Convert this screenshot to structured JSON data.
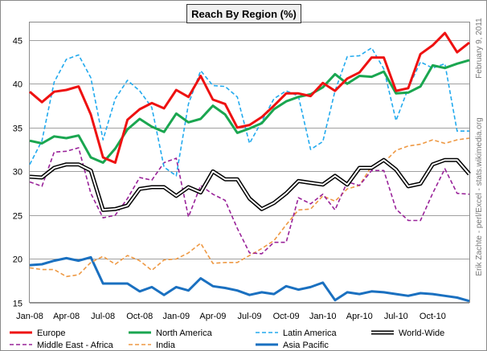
{
  "chart_data": {
    "type": "line",
    "title": "Reach By Region (%)",
    "credits": {
      "date": "February 9, 2011",
      "author": "Erik Zachte - perl/Excel - stats.wikimedia.org"
    },
    "ylim": [
      15,
      47
    ],
    "yticks": [
      15,
      20,
      25,
      30,
      35,
      40,
      45
    ],
    "xticks": [
      "Jan-08",
      "Apr-08",
      "Jul-08",
      "Oct-08",
      "Jan-09",
      "Apr-09",
      "Jul-09",
      "Oct-09",
      "Jan-10",
      "Apr-10",
      "Jul-10",
      "Oct-10"
    ],
    "x": [
      "2008-01",
      "2008-02",
      "2008-03",
      "2008-04",
      "2008-05",
      "2008-06",
      "2008-07",
      "2008-08",
      "2008-09",
      "2008-10",
      "2008-11",
      "2008-12",
      "2009-01",
      "2009-02",
      "2009-03",
      "2009-04",
      "2009-05",
      "2009-06",
      "2009-07",
      "2009-08",
      "2009-09",
      "2009-10",
      "2009-11",
      "2009-12",
      "2010-01",
      "2010-02",
      "2010-03",
      "2010-04",
      "2010-05",
      "2010-06",
      "2010-07",
      "2010-08",
      "2010-09",
      "2010-10",
      "2010-11",
      "2010-12",
      "2011-01"
    ],
    "grid": true,
    "legend_position": "bottom",
    "series": [
      {
        "name": "Europe",
        "color": "#ee1111",
        "style": "solid",
        "values": [
          39.1,
          37.9,
          39.1,
          39.3,
          39.7,
          36.5,
          31.6,
          31.0,
          35.9,
          37.1,
          37.8,
          37.2,
          39.3,
          38.5,
          40.9,
          38.2,
          37.7,
          35.0,
          35.3,
          36.2,
          37.5,
          38.9,
          38.9,
          38.6,
          40.1,
          39.2,
          40.6,
          41.3,
          43.0,
          43.0,
          39.2,
          39.5,
          43.4,
          44.4,
          45.8,
          43.6,
          44.7
        ]
      },
      {
        "name": "North America",
        "color": "#1aa650",
        "style": "solid",
        "values": [
          33.5,
          33.2,
          34.0,
          33.8,
          34.1,
          31.6,
          31.0,
          32.6,
          34.8,
          36.0,
          35.1,
          34.5,
          36.6,
          35.6,
          36.0,
          37.5,
          36.5,
          34.4,
          34.9,
          35.5,
          37.1,
          38.0,
          38.5,
          38.8,
          39.6,
          41.1,
          40.0,
          40.9,
          40.8,
          41.4,
          38.9,
          39.0,
          39.7,
          42.1,
          41.8,
          42.3,
          42.7
        ]
      },
      {
        "name": "Latin America",
        "color": "#22aaee",
        "style": "dashed",
        "values": [
          30.8,
          33.5,
          40.2,
          42.8,
          43.3,
          40.7,
          33.6,
          38.3,
          40.4,
          39.2,
          37.3,
          30.5,
          29.5,
          37.7,
          41.5,
          39.8,
          39.7,
          38.5,
          33.2,
          35.7,
          38.3,
          39.2,
          38.6,
          32.5,
          33.4,
          39.2,
          43.1,
          43.2,
          44.1,
          41.7,
          35.8,
          39.5,
          42.5,
          41.8,
          42.3,
          34.6,
          34.6
        ]
      },
      {
        "name": "World-Wide",
        "color": "#000000",
        "style": "double",
        "values": [
          29.4,
          29.3,
          30.4,
          30.8,
          30.8,
          30.1,
          25.6,
          25.7,
          26.1,
          28.0,
          28.2,
          28.2,
          27.2,
          28.2,
          27.6,
          30.0,
          29.1,
          29.1,
          26.9,
          25.7,
          26.4,
          27.5,
          28.9,
          28.7,
          28.5,
          29.5,
          28.5,
          30.4,
          30.4,
          31.3,
          30.2,
          28.3,
          28.6,
          30.8,
          31.3,
          31.3,
          29.7
        ]
      },
      {
        "name": "Middle East - Africa",
        "color": "#992299",
        "style": "dashed",
        "values": [
          28.8,
          28.3,
          32.2,
          32.3,
          32.7,
          27.5,
          24.7,
          25.0,
          26.9,
          29.3,
          29.0,
          31.0,
          31.5,
          24.8,
          28.4,
          27.4,
          26.7,
          23.5,
          20.7,
          20.6,
          21.9,
          21.9,
          27.0,
          26.3,
          27.4,
          25.6,
          28.8,
          28.4,
          30.1,
          30.1,
          25.7,
          24.4,
          24.4,
          27.5,
          30.3,
          27.5,
          27.4
        ]
      },
      {
        "name": "India",
        "color": "#ee9944",
        "style": "dashed",
        "values": [
          19.0,
          18.8,
          18.8,
          18.0,
          18.2,
          19.6,
          20.3,
          19.4,
          20.4,
          19.8,
          18.7,
          19.9,
          20.0,
          20.7,
          21.8,
          19.5,
          19.6,
          19.6,
          20.4,
          21.2,
          22.1,
          23.9,
          25.6,
          25.7,
          27.2,
          26.6,
          28.0,
          28.4,
          30.6,
          31.0,
          32.4,
          32.9,
          33.1,
          33.6,
          33.2,
          33.6,
          33.8
        ]
      },
      {
        "name": "Asia Pacific",
        "color": "#1a70c0",
        "style": "solid",
        "values": [
          19.3,
          19.4,
          19.8,
          20.1,
          19.8,
          20.2,
          17.2,
          17.2,
          17.2,
          16.3,
          16.8,
          15.9,
          16.8,
          16.4,
          17.8,
          16.9,
          16.7,
          16.4,
          15.9,
          16.2,
          16.0,
          16.9,
          16.5,
          16.8,
          17.3,
          15.3,
          16.2,
          16.0,
          16.3,
          16.2,
          16.0,
          15.8,
          16.1,
          16.0,
          15.8,
          15.6,
          15.2
        ]
      }
    ],
    "legend_rows": [
      [
        "Europe",
        "North America",
        "Latin America",
        "World-Wide"
      ],
      [
        "Middle East - Africa",
        "India",
        "Asia Pacific"
      ]
    ]
  }
}
